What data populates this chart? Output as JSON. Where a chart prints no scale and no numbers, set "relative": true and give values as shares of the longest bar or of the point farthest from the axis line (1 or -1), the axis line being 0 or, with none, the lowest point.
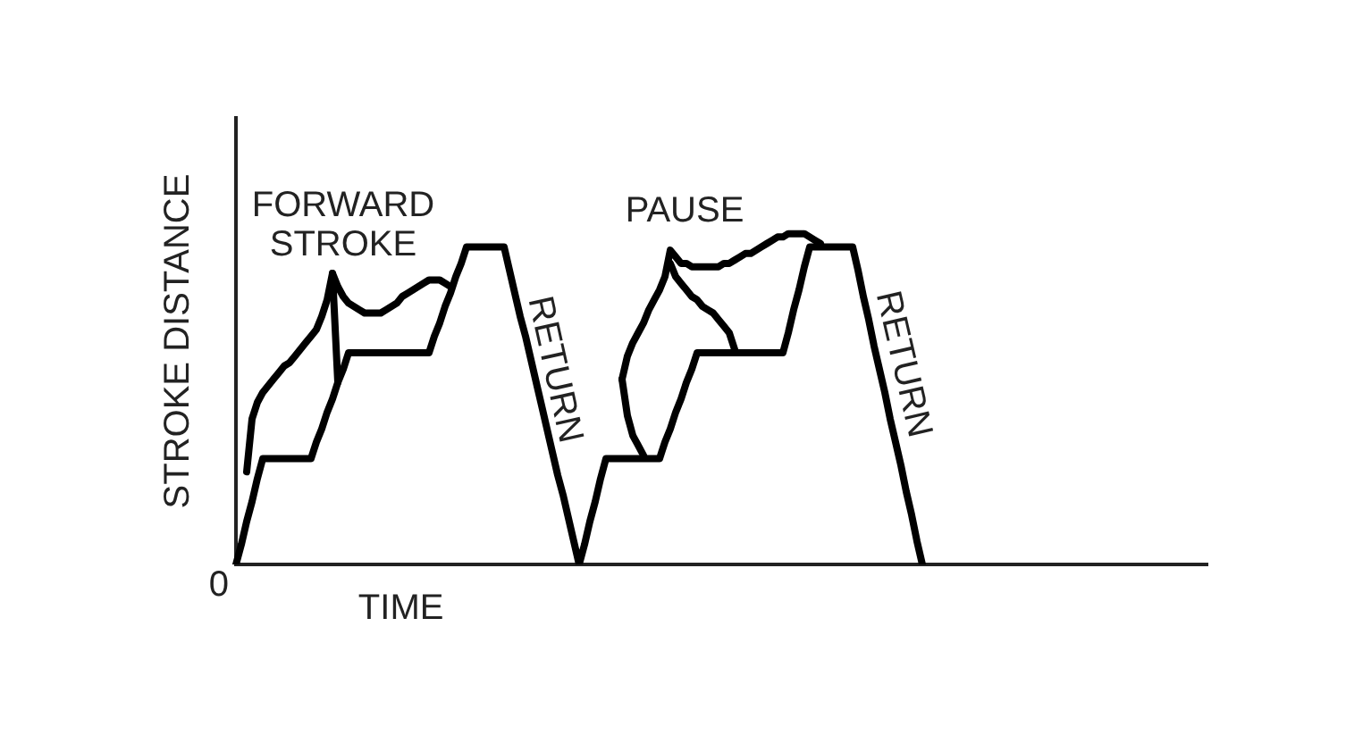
{
  "chart_data": {
    "type": "line",
    "relative": true,
    "xlabel": "TIME",
    "ylabel": "STROKE DISTANCE",
    "marker": "none",
    "categories": [
      null,
      null,
      null,
      null,
      null,
      null,
      null,
      null,
      null,
      null,
      null,
      null,
      null,
      null,
      null,
      null,
      null,
      null,
      null,
      null,
      null,
      null,
      null,
      null,
      null,
      null,
      null,
      null,
      null,
      null,
      null,
      null,
      null,
      null,
      null,
      null,
      null,
      null,
      null,
      null,
      null,
      null,
      null,
      null,
      null,
      null,
      null,
      null,
      null,
      null,
      null,
      null,
      null,
      null,
      null,
      null,
      null,
      null,
      null,
      null,
      null,
      null,
      null,
      null,
      null,
      null,
      null,
      null,
      null,
      null,
      null,
      null,
      null,
      null,
      null,
      null,
      null,
      null,
      null,
      null,
      null,
      null,
      null,
      null,
      null,
      null,
      null,
      null,
      null,
      null,
      null,
      null,
      null,
      null,
      null,
      null,
      null,
      null,
      null,
      null,
      null,
      null,
      null,
      null,
      null,
      null,
      null,
      null,
      null,
      null,
      null,
      null,
      null,
      null,
      null,
      null,
      null,
      null,
      null,
      null,
      null,
      null,
      null,
      null,
      null,
      null,
      null,
      null,
      null,
      null,
      null,
      null,
      null,
      null,
      null,
      null,
      null,
      null,
      null,
      null,
      null,
      null,
      null,
      null,
      null,
      null,
      null,
      null,
      null,
      null,
      null,
      null,
      null,
      null,
      null,
      null,
      null,
      null,
      null,
      null,
      null,
      null,
      null,
      null,
      null,
      null,
      null,
      null,
      null,
      null,
      null,
      null,
      null,
      null,
      null,
      null,
      null,
      null,
      null,
      null,
      null,
      null
    ],
    "series": [
      {
        "color": "#000000",
        "values": [
          0,
          0.06,
          0.13,
          0.19,
          0.26,
          0.32,
          0.32,
          0.32,
          0.32,
          0.32,
          0.32,
          0.32,
          0.32,
          0.32,
          0.32,
          0.37,
          0.41,
          0.46,
          0.5,
          0.55,
          0.59,
          0.64,
          0.64,
          0.64,
          0.64,
          0.64,
          0.64,
          0.64,
          0.64,
          0.64,
          0.64,
          0.64,
          0.64,
          0.64,
          0.64,
          0.64,
          0.64,
          0.69,
          0.73,
          0.78,
          0.82,
          0.87,
          0.91,
          0.96,
          0.96,
          0.96,
          0.96,
          0.96,
          0.96,
          0.96,
          0.96,
          0.89,
          0.82,
          0.75,
          0.69,
          0.62,
          0.55,
          0.48,
          0.41,
          0.34,
          0.27,
          0.21,
          0.14,
          0.07,
          0,
          0.06,
          0.13,
          0.19,
          0.26,
          0.32,
          0.32,
          0.32,
          0.32,
          0.32,
          0.32,
          0.32,
          0.32,
          0.32,
          0.32,
          0.32,
          0.37,
          0.41,
          0.46,
          0.5,
          0.55,
          0.59,
          0.64,
          0.64,
          0.64,
          0.64,
          0.64,
          0.64,
          0.64,
          0.64,
          0.64,
          0.64,
          0.64,
          0.64,
          0.64,
          0.64,
          0.64,
          0.64,
          0.64,
          0.7,
          0.77,
          0.83,
          0.9,
          0.96,
          0.96,
          0.96,
          0.96,
          0.96,
          0.96,
          0.96,
          0.96,
          0.96,
          0.89,
          0.81,
          0.74,
          0.66,
          0.59,
          0.52,
          0.44,
          0.37,
          0.3,
          0.22,
          0.15,
          0.07,
          0,
          null,
          null,
          null,
          null,
          null,
          null,
          null,
          null,
          null,
          null,
          null,
          null,
          null,
          null,
          null,
          null,
          null,
          null,
          null,
          null,
          null,
          null,
          null,
          null,
          null,
          null,
          null,
          null,
          null,
          null,
          null,
          null,
          null,
          null,
          null,
          null,
          null,
          null,
          null,
          null,
          null,
          null,
          null,
          null,
          null,
          null,
          null,
          null,
          null,
          null,
          null,
          null,
          null
        ]
      },
      {
        "color": "#000000",
        "values": [
          null,
          null,
          0.28,
          0.44,
          0.49,
          0.52,
          0.54,
          0.56,
          0.58,
          0.6,
          0.61,
          0.63,
          0.65,
          0.67,
          0.69,
          0.71,
          0.75,
          0.8,
          0.88,
          0.84,
          0.81,
          0.79,
          0.78,
          0.77,
          0.76,
          0.76,
          0.76,
          0.76,
          0.77,
          0.78,
          0.79,
          0.81,
          0.82,
          0.83,
          0.84,
          0.85,
          0.86,
          0.86,
          0.86,
          0.85,
          0.84,
          null,
          null,
          null,
          null,
          null,
          null,
          null,
          null,
          null,
          null,
          null,
          null,
          null,
          null,
          null,
          null,
          null,
          null,
          null,
          null,
          null,
          null,
          null,
          null,
          null,
          null,
          null,
          null,
          null,
          null,
          null,
          null,
          null,
          null,
          null,
          null,
          null,
          null,
          null,
          null,
          null,
          null,
          null,
          null,
          null,
          null,
          null,
          null,
          null,
          null,
          null,
          null,
          null,
          null,
          null,
          null,
          null,
          null,
          null,
          null,
          null,
          null,
          null,
          null,
          null,
          null,
          null,
          null,
          null,
          null,
          null,
          null,
          null,
          null,
          null,
          null,
          null,
          null,
          null,
          null,
          null,
          null,
          null,
          null,
          null,
          null,
          null,
          null,
          null,
          null,
          null,
          null,
          null,
          null,
          null,
          null,
          null,
          null,
          null,
          null,
          null,
          null,
          null,
          null,
          null,
          null,
          null,
          null,
          null,
          null,
          null,
          null,
          null,
          null,
          null,
          null,
          null,
          null,
          null,
          null,
          null,
          null,
          null,
          null,
          null,
          null,
          null,
          null,
          null,
          null,
          null,
          null,
          null,
          null,
          null,
          null,
          null,
          null,
          null,
          null,
          null
        ]
      },
      {
        "color": "#000000",
        "values": [
          null,
          null,
          null,
          null,
          null,
          null,
          null,
          null,
          null,
          null,
          null,
          null,
          null,
          null,
          null,
          null,
          null,
          null,
          0.88,
          0.55,
          null,
          null,
          null,
          null,
          null,
          null,
          null,
          null,
          null,
          null,
          null,
          null,
          null,
          null,
          null,
          null,
          null,
          null,
          null,
          null,
          null,
          null,
          null,
          null,
          null,
          null,
          null,
          null,
          null,
          null,
          null,
          null,
          null,
          null,
          null,
          null,
          null,
          null,
          null,
          null,
          null,
          null,
          null,
          null,
          null,
          null,
          null,
          null,
          null,
          null,
          null,
          null,
          null,
          null,
          null,
          null,
          null,
          null,
          null,
          null,
          null,
          null,
          null,
          null,
          null,
          null,
          null,
          null,
          null,
          null,
          null,
          null,
          null,
          null,
          null,
          null,
          null,
          null,
          null,
          null,
          null,
          null,
          null,
          null,
          null,
          null,
          null,
          null,
          null,
          null,
          null,
          null,
          null,
          null,
          null,
          null,
          null,
          null,
          null,
          null,
          null,
          null,
          null,
          null,
          null,
          null,
          null,
          null,
          null,
          null,
          null,
          null,
          null,
          null,
          null,
          null,
          null,
          null,
          null,
          null,
          null,
          null,
          null,
          null,
          null,
          null,
          null,
          null,
          null,
          null,
          null,
          null,
          null,
          null,
          null,
          null,
          null,
          null,
          null,
          null,
          null,
          null,
          null,
          null,
          null,
          null,
          null,
          null,
          null,
          null,
          null,
          null,
          null,
          null,
          null,
          null,
          null,
          null,
          null,
          null,
          null,
          null
        ]
      },
      {
        "color": "#000000",
        "values": [
          null,
          null,
          null,
          null,
          null,
          null,
          null,
          null,
          null,
          null,
          null,
          null,
          null,
          null,
          null,
          null,
          null,
          null,
          null,
          null,
          null,
          null,
          null,
          null,
          null,
          null,
          null,
          null,
          null,
          null,
          null,
          null,
          null,
          null,
          null,
          null,
          null,
          null,
          null,
          null,
          null,
          null,
          null,
          null,
          null,
          null,
          null,
          null,
          null,
          null,
          null,
          null,
          null,
          null,
          null,
          null,
          null,
          null,
          null,
          null,
          null,
          null,
          null,
          null,
          null,
          null,
          null,
          null,
          null,
          null,
          null,
          null,
          0.56,
          0.45,
          0.39,
          0.36,
          0.33,
          null,
          null,
          null,
          null,
          null,
          null,
          null,
          null,
          null,
          null,
          null,
          null,
          null,
          null,
          null,
          null,
          null,
          null,
          null,
          null,
          null,
          null,
          null,
          null,
          null,
          null,
          null,
          null,
          null,
          null,
          null,
          null,
          null,
          null,
          null,
          null,
          null,
          null,
          null,
          null,
          null,
          null,
          null,
          null,
          null,
          null,
          null,
          null,
          null,
          null,
          null,
          null,
          null,
          null,
          null,
          null,
          null,
          null,
          null,
          null,
          null,
          null,
          null,
          null,
          null,
          null,
          null,
          null,
          null,
          null,
          null,
          null,
          null,
          null,
          null,
          null,
          null,
          null,
          null,
          null,
          null,
          null,
          null,
          null,
          null,
          null,
          null,
          null,
          null,
          null,
          null,
          null,
          null,
          null,
          null,
          null,
          null,
          null,
          null,
          null,
          null,
          null,
          null,
          null,
          null
        ]
      },
      {
        "color": "#000000",
        "values": [
          null,
          null,
          null,
          null,
          null,
          null,
          null,
          null,
          null,
          null,
          null,
          null,
          null,
          null,
          null,
          null,
          null,
          null,
          null,
          null,
          null,
          null,
          null,
          null,
          null,
          null,
          null,
          null,
          null,
          null,
          null,
          null,
          null,
          null,
          null,
          null,
          null,
          null,
          null,
          null,
          null,
          null,
          null,
          null,
          null,
          null,
          null,
          null,
          null,
          null,
          null,
          null,
          null,
          null,
          null,
          null,
          null,
          null,
          null,
          null,
          null,
          null,
          null,
          null,
          null,
          null,
          null,
          null,
          null,
          null,
          null,
          null,
          0.56,
          0.63,
          0.67,
          0.7,
          0.73,
          0.77,
          0.8,
          0.83,
          0.87,
          0.95,
          0.93,
          0.91,
          0.91,
          0.9,
          0.9,
          0.9,
          0.9,
          0.9,
          0.9,
          0.91,
          0.91,
          0.92,
          0.93,
          0.94,
          0.94,
          0.95,
          0.96,
          0.97,
          0.98,
          0.99,
          0.99,
          1,
          1,
          1,
          1,
          0.99,
          0.98,
          0.97,
          null,
          null,
          null,
          null,
          null,
          null,
          null,
          null,
          null,
          null,
          null,
          null,
          null,
          null,
          null,
          null,
          null,
          null,
          null,
          null,
          null,
          null,
          null,
          null,
          null,
          null,
          null,
          null,
          null,
          null,
          null,
          null,
          null,
          null,
          null,
          null,
          null,
          null,
          null,
          null,
          null,
          null,
          null,
          null,
          null,
          null,
          null,
          null,
          null,
          null,
          null,
          null,
          null,
          null,
          null,
          null,
          null,
          null,
          null,
          null,
          null,
          null,
          null,
          null,
          null,
          null,
          null,
          null,
          null,
          null,
          null,
          null
        ]
      },
      {
        "color": "#000000",
        "values": [
          null,
          null,
          null,
          null,
          null,
          null,
          null,
          null,
          null,
          null,
          null,
          null,
          null,
          null,
          null,
          null,
          null,
          null,
          null,
          null,
          null,
          null,
          null,
          null,
          null,
          null,
          null,
          null,
          null,
          null,
          null,
          null,
          null,
          null,
          null,
          null,
          null,
          null,
          null,
          null,
          null,
          null,
          null,
          null,
          null,
          null,
          null,
          null,
          null,
          null,
          null,
          null,
          null,
          null,
          null,
          null,
          null,
          null,
          null,
          null,
          null,
          null,
          null,
          null,
          null,
          null,
          null,
          null,
          null,
          null,
          null,
          null,
          null,
          null,
          null,
          null,
          null,
          null,
          null,
          null,
          null,
          0.91,
          0.87,
          0.85,
          0.83,
          0.81,
          0.8,
          0.78,
          0.77,
          0.76,
          0.74,
          0.72,
          0.7,
          0.65,
          null,
          null,
          null,
          null,
          null,
          null,
          null,
          null,
          null,
          null,
          null,
          null,
          null,
          null,
          null,
          null,
          null,
          null,
          null,
          null,
          null,
          null,
          null,
          null,
          null,
          null,
          null,
          null,
          null,
          null,
          null,
          null,
          null,
          null,
          null,
          null,
          null,
          null,
          null,
          null,
          null,
          null,
          null,
          null,
          null,
          null,
          null,
          null,
          null,
          null,
          null,
          null,
          null,
          null,
          null,
          null,
          null,
          null,
          null,
          null,
          null,
          null,
          null,
          null,
          null,
          null,
          null,
          null,
          null,
          null,
          null,
          null,
          null,
          null,
          null,
          null,
          null,
          null,
          null,
          null,
          null,
          null,
          null,
          null,
          null,
          null,
          null,
          null
        ]
      }
    ],
    "annotations": [
      "FORWARD STROKE",
      "PAUSE",
      "RETURN",
      "RETURN",
      "0"
    ]
  }
}
